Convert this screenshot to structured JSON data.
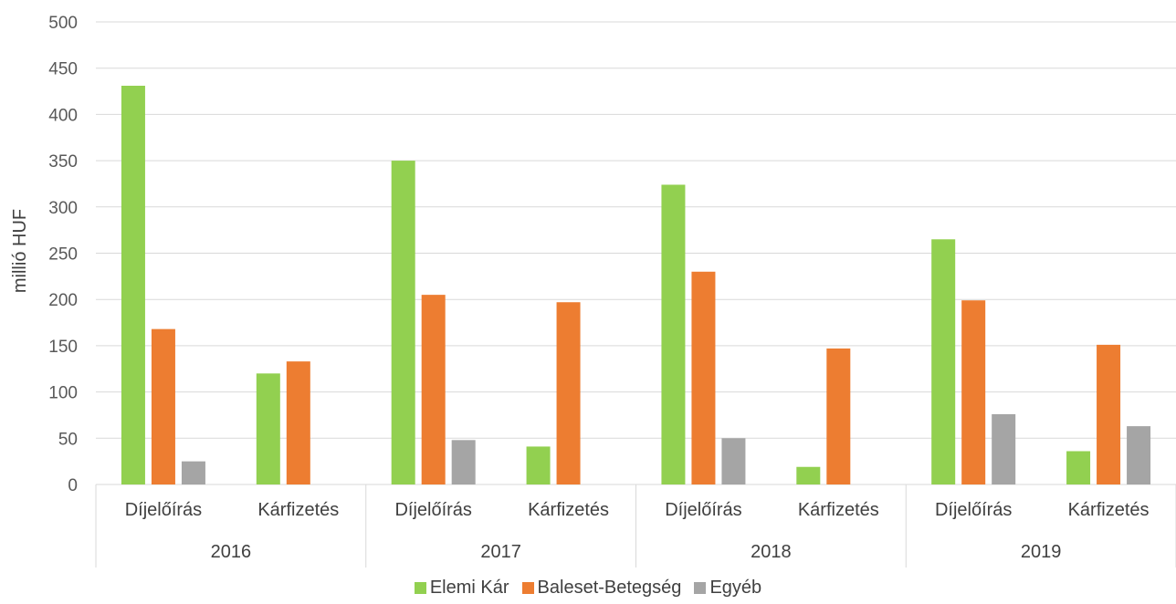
{
  "chart_data": {
    "type": "bar",
    "ylabel": "millió HUF",
    "ylim": [
      0,
      500
    ],
    "yticks": [
      0,
      50,
      100,
      150,
      200,
      250,
      300,
      350,
      400,
      450,
      500
    ],
    "groups": [
      "2016",
      "2017",
      "2018",
      "2019"
    ],
    "subcategories": [
      "Díjelőírás",
      "Kárfizetés"
    ],
    "categories": [
      "2016 Díjelőírás",
      "2016 Kárfizetés",
      "2017 Díjelőírás",
      "2017 Kárfizetés",
      "2018 Díjelőírás",
      "2018 Kárfizetés",
      "2019 Díjelőírás",
      "2019 Kárfizetés"
    ],
    "series": [
      {
        "name": "Elemi Kár",
        "color": "#92d050",
        "values": [
          431,
          120,
          350,
          41,
          324,
          19,
          265,
          36
        ]
      },
      {
        "name": "Baleset-Betegség",
        "color": "#ed7d31",
        "values": [
          168,
          133,
          205,
          197,
          230,
          147,
          199,
          151
        ]
      },
      {
        "name": "Egyéb",
        "color": "#a5a5a5",
        "values": [
          25,
          0,
          48,
          0,
          50,
          0,
          76,
          63
        ]
      }
    ],
    "grid": true,
    "legend_position": "bottom"
  }
}
